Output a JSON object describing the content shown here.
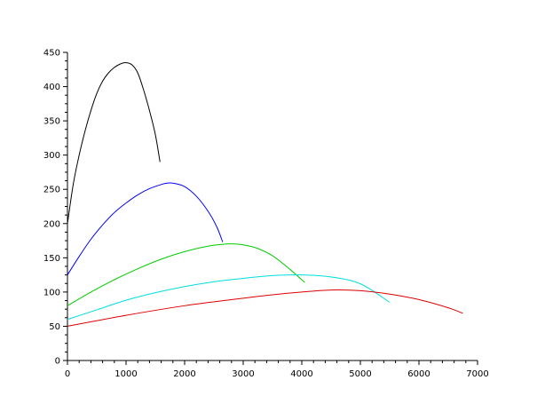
{
  "chart_data": {
    "type": "line",
    "title": "",
    "xlabel": "",
    "ylabel": "",
    "xlim": [
      0,
      7000
    ],
    "ylim": [
      0,
      450
    ],
    "grid": false,
    "x_ticks": [
      {
        "value": 0,
        "label": "0"
      },
      {
        "value": 1000,
        "label": "1000"
      },
      {
        "value": 2000,
        "label": "2000"
      },
      {
        "value": 3000,
        "label": "3000"
      },
      {
        "value": 4000,
        "label": "4000"
      },
      {
        "value": 5000,
        "label": "5000"
      },
      {
        "value": 6000,
        "label": "6000"
      },
      {
        "value": 7000,
        "label": "7000"
      }
    ],
    "y_ticks": [
      {
        "value": 0,
        "label": "0"
      },
      {
        "value": 50,
        "label": "50"
      },
      {
        "value": 100,
        "label": "100"
      },
      {
        "value": 150,
        "label": "150"
      },
      {
        "value": 200,
        "label": "200"
      },
      {
        "value": 250,
        "label": "250"
      },
      {
        "value": 300,
        "label": "300"
      },
      {
        "value": 350,
        "label": "350"
      },
      {
        "value": 400,
        "label": "400"
      },
      {
        "value": 450,
        "label": "450"
      }
    ],
    "series": [
      {
        "color": "#000000",
        "points": [
          [
            0,
            200
          ],
          [
            100,
            258
          ],
          [
            200,
            300
          ],
          [
            300,
            335
          ],
          [
            400,
            365
          ],
          [
            500,
            390
          ],
          [
            600,
            408
          ],
          [
            700,
            420
          ],
          [
            800,
            428
          ],
          [
            900,
            433
          ],
          [
            1000,
            435
          ],
          [
            1100,
            432
          ],
          [
            1200,
            420
          ],
          [
            1300,
            395
          ],
          [
            1400,
            365
          ],
          [
            1500,
            330
          ],
          [
            1580,
            290
          ]
        ]
      },
      {
        "color": "#0000ff",
        "points": [
          [
            0,
            125
          ],
          [
            200,
            152
          ],
          [
            400,
            177
          ],
          [
            600,
            198
          ],
          [
            800,
            216
          ],
          [
            1000,
            230
          ],
          [
            1200,
            242
          ],
          [
            1400,
            251
          ],
          [
            1600,
            257
          ],
          [
            1700,
            259
          ],
          [
            1800,
            259
          ],
          [
            2000,
            254
          ],
          [
            2200,
            240
          ],
          [
            2400,
            218
          ],
          [
            2550,
            195
          ],
          [
            2650,
            173
          ]
        ]
      },
      {
        "color": "#00cc00",
        "points": [
          [
            0,
            80
          ],
          [
            400,
            100
          ],
          [
            800,
            118
          ],
          [
            1200,
            134
          ],
          [
            1600,
            148
          ],
          [
            2000,
            159
          ],
          [
            2400,
            167
          ],
          [
            2700,
            170
          ],
          [
            2900,
            170
          ],
          [
            3200,
            165
          ],
          [
            3500,
            153
          ],
          [
            3800,
            133
          ],
          [
            4050,
            114
          ]
        ]
      },
      {
        "color": "#00dddd",
        "points": [
          [
            0,
            60
          ],
          [
            500,
            74
          ],
          [
            1000,
            88
          ],
          [
            1500,
            99
          ],
          [
            2000,
            108
          ],
          [
            2500,
            115
          ],
          [
            3000,
            120
          ],
          [
            3500,
            124
          ],
          [
            4000,
            125
          ],
          [
            4500,
            122
          ],
          [
            5000,
            112
          ],
          [
            5500,
            85
          ]
        ]
      },
      {
        "color": "#dd0000",
        "points": [
          [
            0,
            50
          ],
          [
            1000,
            66
          ],
          [
            2000,
            80
          ],
          [
            3000,
            91
          ],
          [
            3500,
            96
          ],
          [
            4000,
            100
          ],
          [
            4500,
            103
          ],
          [
            5000,
            102
          ],
          [
            5500,
            97
          ],
          [
            6000,
            89
          ],
          [
            6500,
            77
          ],
          [
            6750,
            69
          ]
        ]
      }
    ]
  }
}
